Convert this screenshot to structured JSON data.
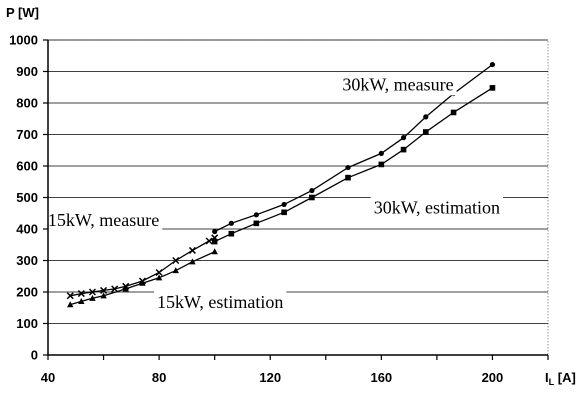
{
  "chart_data": {
    "type": "line",
    "ylabel": "P [W]",
    "xlabel": "I",
    "xlabel_sub": "L",
    "xlabel_unit": " [A]",
    "xlim": [
      40,
      220
    ],
    "ylim": [
      0,
      1000
    ],
    "xticks": [
      40,
      80,
      120,
      160,
      200
    ],
    "yticks": [
      0,
      100,
      200,
      300,
      400,
      500,
      600,
      700,
      800,
      900,
      1000
    ],
    "grid": "horizontal",
    "series": [
      {
        "name": "15kW, measure",
        "marker": "x",
        "x": [
          48,
          52,
          56,
          60,
          64,
          68,
          74,
          80,
          86,
          92,
          98,
          100
        ],
        "y": [
          188,
          195,
          200,
          205,
          210,
          218,
          235,
          262,
          300,
          332,
          362,
          372
        ]
      },
      {
        "name": "15kW, estimation",
        "marker": "triangle",
        "x": [
          48,
          52,
          56,
          60,
          68,
          74,
          80,
          86,
          92,
          100
        ],
        "y": [
          160,
          170,
          180,
          188,
          210,
          228,
          245,
          268,
          296,
          328
        ]
      },
      {
        "name": "30kW, measure",
        "marker": "circle",
        "x": [
          100,
          106,
          115,
          125,
          135,
          148,
          160,
          168,
          176,
          186,
          200
        ],
        "y": [
          392,
          418,
          445,
          478,
          522,
          595,
          640,
          690,
          756,
          830,
          922
        ]
      },
      {
        "name": "30kW, estimation",
        "marker": "square",
        "x": [
          100,
          106,
          115,
          125,
          135,
          148,
          160,
          168,
          176,
          186,
          200
        ],
        "y": [
          360,
          385,
          418,
          453,
          500,
          563,
          605,
          652,
          708,
          770,
          848
        ]
      }
    ],
    "annotations": [
      {
        "text": "30kW, measure",
        "x": 166,
        "y": 840
      },
      {
        "text": "15kW, measure",
        "x": 60,
        "y": 410
      },
      {
        "text": "30kW, estimation",
        "x": 180,
        "y": 450
      },
      {
        "text": "15kW, estimation",
        "x": 102,
        "y": 150
      }
    ]
  }
}
